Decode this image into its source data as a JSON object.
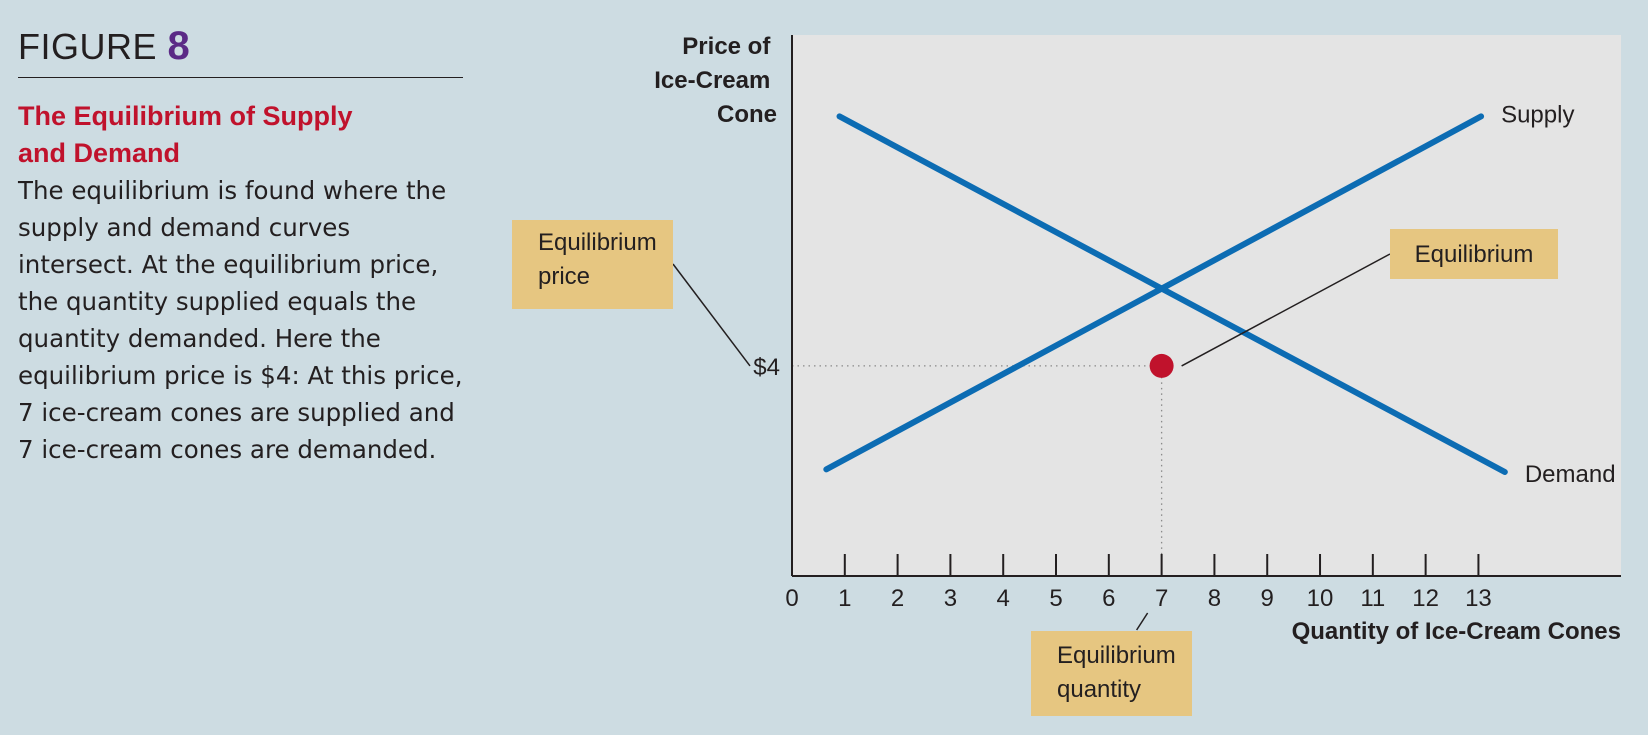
{
  "figure": {
    "label": "FIGURE",
    "number": "8",
    "title_line1": "The Equilibrium of Supply",
    "title_line2": "and Demand",
    "caption": "The equilibrium is found where the supply and demand curves intersect. At the equilibrium price, the quantity supplied equals the quantity demanded. Here the equilibrium price is $4: At this price, 7 ice-cream cones are supplied and 7 ice-cream cones are demanded."
  },
  "chart_data": {
    "type": "line",
    "xlabel": "Quantity of Ice-Cream Cones",
    "ylabel_lines": [
      "Price of",
      "Ice-Cream",
      "Cone"
    ],
    "xlim": [
      0,
      15.7
    ],
    "ylim": [
      0,
      10.3
    ],
    "x_ticks": [
      0,
      1,
      2,
      3,
      4,
      5,
      6,
      7,
      8,
      9,
      10,
      11,
      12,
      13
    ],
    "y_tick_label": "$4",
    "grid": false,
    "series": [
      {
        "name": "Supply",
        "color": "#0c6cb3",
        "x": [
          0.65,
          13.05
        ],
        "y": [
          2.03,
          8.75
        ]
      },
      {
        "name": "Demand",
        "color": "#0c6cb3",
        "x": [
          0.9,
          13.5
        ],
        "y": [
          8.75,
          1.98
        ]
      }
    ],
    "equilibrium": {
      "x": 7,
      "y": 4,
      "color": "#c0122c"
    },
    "callouts": {
      "price_line1": "Equilibrium",
      "price_line2": "price",
      "equilibrium": "Equilibrium",
      "quantity_line1": "Equilibrium",
      "quantity_line2": "quantity"
    },
    "colors": {
      "plot_bg": "#e4e4e4",
      "callout_bg": "#e6c681",
      "page_bg": "#cddce2"
    }
  }
}
